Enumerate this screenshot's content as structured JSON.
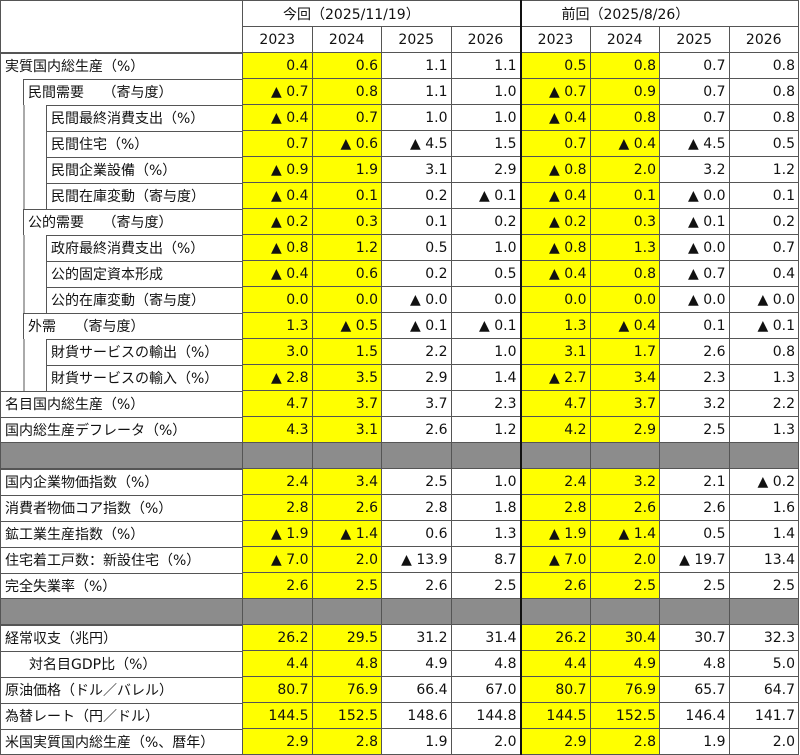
{
  "header": {
    "current": "今回（2025/11/19）",
    "previous": "前回（2025/8/26）",
    "years": [
      "2023",
      "2024",
      "2025",
      "2026",
      "2023",
      "2024",
      "2025",
      "2026"
    ]
  },
  "colors": {
    "actual_highlight": "#ffff00",
    "separator": "#8c8c8c"
  },
  "rows": [
    {
      "label": "実質国内総生産（%）",
      "level": 0,
      "values": [
        "0.4",
        "0.6",
        "1.1",
        "1.1",
        "0.5",
        "0.8",
        "0.7",
        "0.8"
      ]
    },
    {
      "label": "民間需要　 （寄与度）",
      "level": 1,
      "values": [
        "▲ 0.7",
        "0.8",
        "1.1",
        "1.0",
        "▲ 0.7",
        "0.9",
        "0.7",
        "0.8"
      ]
    },
    {
      "label": "民間最終消費支出（%）",
      "level": 2,
      "values": [
        "▲ 0.4",
        "0.7",
        "1.0",
        "1.0",
        "▲ 0.4",
        "0.8",
        "0.7",
        "0.8"
      ]
    },
    {
      "label": "民間住宅（%）",
      "level": 2,
      "values": [
        "0.7",
        "▲ 0.6",
        "▲ 4.5",
        "1.5",
        "0.7",
        "▲ 0.4",
        "▲ 4.5",
        "0.5"
      ]
    },
    {
      "label": "民間企業設備（%）",
      "level": 2,
      "values": [
        "▲ 0.9",
        "1.9",
        "3.1",
        "2.9",
        "▲ 0.8",
        "2.0",
        "3.2",
        "1.2"
      ]
    },
    {
      "label": "民間在庫変動（寄与度）",
      "level": 2,
      "values": [
        "▲ 0.4",
        "0.1",
        "0.2",
        "▲ 0.1",
        "▲ 0.4",
        "0.1",
        "▲ 0.0",
        "0.1"
      ]
    },
    {
      "label": "公的需要　 （寄与度）",
      "level": 1,
      "values": [
        "▲ 0.2",
        "0.3",
        "0.1",
        "0.2",
        "▲ 0.2",
        "0.3",
        "▲ 0.1",
        "0.2"
      ]
    },
    {
      "label": "政府最終消費支出（%）",
      "level": 2,
      "values": [
        "▲ 0.8",
        "1.2",
        "0.5",
        "1.0",
        "▲ 0.8",
        "1.3",
        "▲ 0.0",
        "0.7"
      ]
    },
    {
      "label": "公的固定資本形成",
      "level": 2,
      "values": [
        "▲ 0.4",
        "0.6",
        "0.2",
        "0.5",
        "▲ 0.4",
        "0.8",
        "▲ 0.7",
        "0.4"
      ]
    },
    {
      "label": "公的在庫変動（寄与度）",
      "level": 2,
      "values": [
        "0.0",
        "0.0",
        "▲ 0.0",
        "0.0",
        "0.0",
        "0.0",
        "▲ 0.0",
        "▲ 0.0"
      ]
    },
    {
      "label": "外需　 （寄与度）",
      "level": 1,
      "values": [
        "1.3",
        "▲ 0.5",
        "▲ 0.1",
        "▲ 0.1",
        "1.3",
        "▲ 0.4",
        "0.1",
        "▲ 0.1"
      ]
    },
    {
      "label": "財貨サービスの輸出（%）",
      "level": 2,
      "values": [
        "3.0",
        "1.5",
        "2.2",
        "1.0",
        "3.1",
        "1.7",
        "2.6",
        "0.8"
      ]
    },
    {
      "label": "財貨サービスの輸入（%）",
      "level": 2,
      "values": [
        "▲ 2.8",
        "3.5",
        "2.9",
        "1.4",
        "▲ 2.7",
        "3.4",
        "2.3",
        "1.3"
      ]
    },
    {
      "label": "名目国内総生産（%）",
      "level": 0,
      "values": [
        "4.7",
        "3.7",
        "3.7",
        "2.3",
        "4.7",
        "3.7",
        "3.2",
        "2.2"
      ]
    },
    {
      "label": "国内総生産デフレータ（%）",
      "level": 0,
      "values": [
        "4.3",
        "3.1",
        "2.6",
        "1.2",
        "4.2",
        "2.9",
        "2.5",
        "1.3"
      ]
    },
    {
      "separator": true
    },
    {
      "label": "国内企業物価指数（%）",
      "level": 0,
      "values": [
        "2.4",
        "3.4",
        "2.5",
        "1.0",
        "2.4",
        "3.2",
        "2.1",
        "▲ 0.2"
      ]
    },
    {
      "label": "消費者物価コア指数（%）",
      "level": 0,
      "values": [
        "2.8",
        "2.6",
        "2.8",
        "1.8",
        "2.8",
        "2.6",
        "2.6",
        "1.6"
      ]
    },
    {
      "label": "鉱工業生産指数（%）",
      "level": 0,
      "values": [
        "▲ 1.9",
        "▲ 1.4",
        "0.6",
        "1.3",
        "▲ 1.9",
        "▲ 1.4",
        "0.5",
        "1.4"
      ]
    },
    {
      "label": "住宅着工戸数：新設住宅（%）",
      "level": 0,
      "values": [
        "▲ 7.0",
        "2.0",
        "▲ 13.9",
        "8.7",
        "▲ 7.0",
        "2.0",
        "▲ 19.7",
        "13.4"
      ]
    },
    {
      "label": "完全失業率（%）",
      "level": 0,
      "values": [
        "2.6",
        "2.5",
        "2.6",
        "2.5",
        "2.6",
        "2.5",
        "2.5",
        "2.5"
      ]
    },
    {
      "separator": true
    },
    {
      "label": "経常収支（兆円）",
      "level": 0,
      "values": [
        "26.2",
        "29.5",
        "31.2",
        "31.4",
        "26.2",
        "30.4",
        "30.7",
        "32.3"
      ]
    },
    {
      "label": "対名目GDP比（%）",
      "level": 0,
      "indent": true,
      "values": [
        "4.4",
        "4.8",
        "4.9",
        "4.8",
        "4.4",
        "4.9",
        "4.8",
        "5.0"
      ]
    },
    {
      "label": "原油価格（ドル／バレル）",
      "level": 0,
      "values": [
        "80.7",
        "76.9",
        "66.4",
        "67.0",
        "80.7",
        "76.9",
        "65.7",
        "64.7"
      ]
    },
    {
      "label": "為替レート（円／ドル）",
      "level": 0,
      "values": [
        "144.5",
        "152.5",
        "148.6",
        "144.8",
        "144.5",
        "152.5",
        "146.4",
        "141.7"
      ]
    },
    {
      "label": "米国実質国内総生産（%、暦年）",
      "level": 0,
      "values": [
        "2.9",
        "2.8",
        "1.9",
        "2.0",
        "2.9",
        "2.8",
        "1.9",
        "2.0"
      ]
    }
  ]
}
